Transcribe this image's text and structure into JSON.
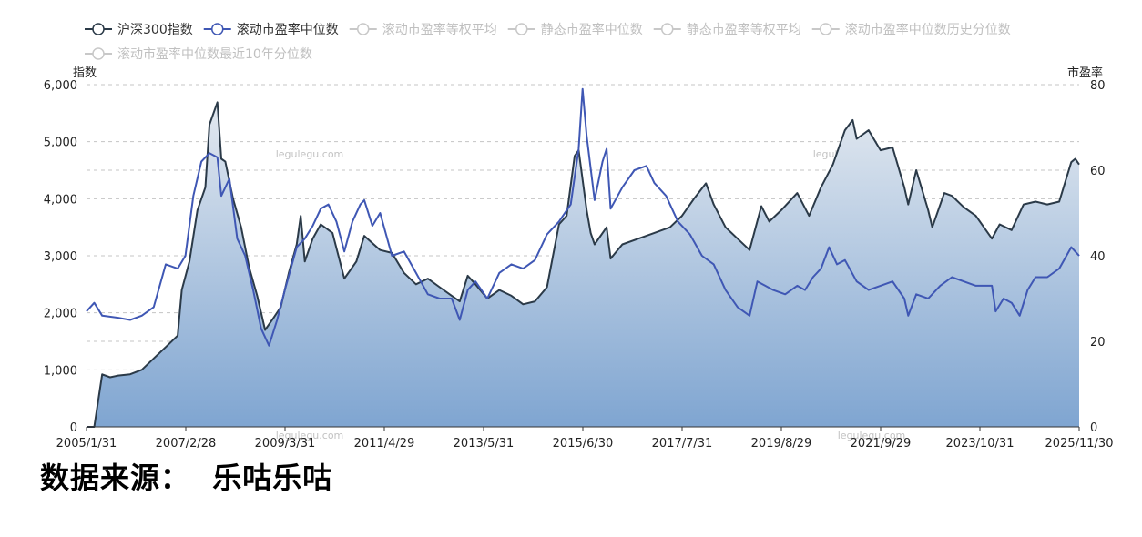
{
  "chart_data": {
    "type": "line",
    "legend": {
      "placement": "top-left",
      "items": [
        {
          "label": "沪深300指数",
          "active": true,
          "color": "#2b3a48"
        },
        {
          "label": "滚动市盈率中位数",
          "active": true,
          "color": "#3f57b4"
        },
        {
          "label": "滚动市盈率等权平均",
          "active": false
        },
        {
          "label": "静态市盈率中位数",
          "active": false
        },
        {
          "label": "静态市盈率等权平均",
          "active": false
        },
        {
          "label": "滚动市盈率中位数历史分位数",
          "active": false
        },
        {
          "label": "滚动市盈率中位数最近10年分位数",
          "active": false
        }
      ]
    },
    "y_left": {
      "label": "指数",
      "min": 0,
      "max": 6000,
      "ticks": [
        0,
        1000,
        2000,
        3000,
        4000,
        5000,
        6000
      ],
      "tick_labels": [
        "0",
        "1,000",
        "2,000",
        "3,000",
        "4,000",
        "5,000",
        "6,000"
      ]
    },
    "y_right": {
      "label": "市盈率",
      "min": 0,
      "max": 80,
      "ticks": [
        0,
        20,
        40,
        60,
        80
      ],
      "tick_labels": [
        "0",
        "20",
        "40",
        "60",
        "80"
      ]
    },
    "x_range": [
      "2005-01-31",
      "2025-11-30"
    ],
    "x_tick_labels": [
      "2005/1/31",
      "2007/2/28",
      "2009/3/31",
      "2011/4/29",
      "2013/5/31",
      "2015/6/30",
      "2017/7/31",
      "2019/8/29",
      "2021/9/29",
      "2023/10/31",
      "2025/11/30"
    ],
    "grid": "horizontal dashed",
    "watermarks": [
      "legulegu.com",
      "legulegu.com",
      "legulegu.com",
      "legulegu.com"
    ],
    "series": [
      {
        "name": "沪深300指数",
        "axis": "left",
        "style": "area",
        "color": "#2b3a48",
        "points": [
          [
            "2005-01-31",
            0
          ],
          [
            "2005-03-31",
            0
          ],
          [
            "2005-05-31",
            920
          ],
          [
            "2005-07-31",
            870
          ],
          [
            "2005-09-30",
            900
          ],
          [
            "2005-12-31",
            923
          ],
          [
            "2006-03-31",
            1000
          ],
          [
            "2006-06-30",
            1200
          ],
          [
            "2006-09-30",
            1400
          ],
          [
            "2006-12-31",
            1600
          ],
          [
            "2007-01-31",
            2400
          ],
          [
            "2007-03-31",
            2900
          ],
          [
            "2007-05-31",
            3800
          ],
          [
            "2007-07-31",
            4200
          ],
          [
            "2007-08-31",
            5300
          ],
          [
            "2007-10-31",
            5690
          ],
          [
            "2007-11-30",
            4700
          ],
          [
            "2007-12-31",
            4650
          ],
          [
            "2008-02-28",
            4000
          ],
          [
            "2008-04-30",
            3500
          ],
          [
            "2008-06-30",
            2800
          ],
          [
            "2008-08-31",
            2300
          ],
          [
            "2008-10-31",
            1700
          ],
          [
            "2008-12-31",
            1900
          ],
          [
            "2009-02-28",
            2100
          ],
          [
            "2009-04-30",
            2700
          ],
          [
            "2009-06-30",
            3200
          ],
          [
            "2009-07-31",
            3700
          ],
          [
            "2009-08-31",
            2900
          ],
          [
            "2009-10-31",
            3300
          ],
          [
            "2009-12-31",
            3550
          ],
          [
            "2010-03-31",
            3400
          ],
          [
            "2010-06-30",
            2600
          ],
          [
            "2010-09-30",
            2900
          ],
          [
            "2010-11-30",
            3350
          ],
          [
            "2011-03-31",
            3100
          ],
          [
            "2011-06-30",
            3050
          ],
          [
            "2011-09-30",
            2700
          ],
          [
            "2011-12-31",
            2500
          ],
          [
            "2012-03-31",
            2600
          ],
          [
            "2012-06-30",
            2450
          ],
          [
            "2012-09-30",
            2300
          ],
          [
            "2012-11-30",
            2200
          ],
          [
            "2013-01-31",
            2650
          ],
          [
            "2013-03-31",
            2500
          ],
          [
            "2013-06-30",
            2250
          ],
          [
            "2013-09-30",
            2400
          ],
          [
            "2013-12-31",
            2300
          ],
          [
            "2014-03-31",
            2150
          ],
          [
            "2014-06-30",
            2200
          ],
          [
            "2014-09-30",
            2450
          ],
          [
            "2014-12-31",
            3550
          ],
          [
            "2015-02-28",
            3700
          ],
          [
            "2015-04-30",
            4750
          ],
          [
            "2015-05-31",
            4850
          ],
          [
            "2015-07-31",
            3800
          ],
          [
            "2015-08-31",
            3400
          ],
          [
            "2015-09-30",
            3200
          ],
          [
            "2015-12-31",
            3500
          ],
          [
            "2016-01-31",
            2950
          ],
          [
            "2016-04-30",
            3200
          ],
          [
            "2016-08-31",
            3300
          ],
          [
            "2016-12-31",
            3400
          ],
          [
            "2017-04-30",
            3500
          ],
          [
            "2017-07-31",
            3700
          ],
          [
            "2017-10-31",
            4000
          ],
          [
            "2018-01-31",
            4270
          ],
          [
            "2018-03-31",
            3900
          ],
          [
            "2018-06-30",
            3500
          ],
          [
            "2018-09-30",
            3300
          ],
          [
            "2018-12-31",
            3100
          ],
          [
            "2019-03-31",
            3870
          ],
          [
            "2019-05-31",
            3600
          ],
          [
            "2019-08-31",
            3800
          ],
          [
            "2019-12-31",
            4100
          ],
          [
            "2020-03-31",
            3700
          ],
          [
            "2020-06-30",
            4200
          ],
          [
            "2020-09-30",
            4600
          ],
          [
            "2020-12-31",
            5200
          ],
          [
            "2021-02-28",
            5380
          ],
          [
            "2021-03-31",
            5050
          ],
          [
            "2021-06-30",
            5200
          ],
          [
            "2021-09-30",
            4850
          ],
          [
            "2021-12-31",
            4900
          ],
          [
            "2022-03-31",
            4200
          ],
          [
            "2022-04-30",
            3900
          ],
          [
            "2022-06-30",
            4500
          ],
          [
            "2022-09-30",
            3800
          ],
          [
            "2022-10-31",
            3500
          ],
          [
            "2023-01-31",
            4100
          ],
          [
            "2023-03-31",
            4050
          ],
          [
            "2023-06-30",
            3850
          ],
          [
            "2023-09-30",
            3700
          ],
          [
            "2024-01-31",
            3300
          ],
          [
            "2024-03-31",
            3550
          ],
          [
            "2024-06-30",
            3450
          ],
          [
            "2024-09-30",
            3900
          ],
          [
            "2024-12-31",
            3950
          ],
          [
            "2025-03-31",
            3900
          ],
          [
            "2025-06-30",
            3950
          ],
          [
            "2025-09-30",
            4640
          ],
          [
            "2025-10-31",
            4700
          ],
          [
            "2025-11-30",
            4600
          ]
        ]
      },
      {
        "name": "滚动市盈率中位数",
        "axis": "right",
        "style": "line",
        "color": "#3f57b4",
        "points": [
          [
            "2005-01-31",
            27
          ],
          [
            "2005-03-31",
            29
          ],
          [
            "2005-05-31",
            26
          ],
          [
            "2005-09-30",
            25.5
          ],
          [
            "2005-12-31",
            25
          ],
          [
            "2006-03-31",
            26
          ],
          [
            "2006-06-30",
            28
          ],
          [
            "2006-09-30",
            38
          ],
          [
            "2006-12-31",
            37
          ],
          [
            "2007-02-28",
            40
          ],
          [
            "2007-04-30",
            54
          ],
          [
            "2007-06-30",
            62
          ],
          [
            "2007-08-31",
            64
          ],
          [
            "2007-10-31",
            63
          ],
          [
            "2007-11-30",
            54
          ],
          [
            "2008-01-31",
            58
          ],
          [
            "2008-03-31",
            44
          ],
          [
            "2008-05-31",
            40
          ],
          [
            "2008-07-31",
            32
          ],
          [
            "2008-09-30",
            23
          ],
          [
            "2008-11-30",
            19
          ],
          [
            "2009-01-31",
            25
          ],
          [
            "2009-03-31",
            32
          ],
          [
            "2009-06-30",
            42
          ],
          [
            "2009-08-31",
            44
          ],
          [
            "2009-10-31",
            47
          ],
          [
            "2009-12-31",
            51
          ],
          [
            "2010-02-28",
            52
          ],
          [
            "2010-04-30",
            48
          ],
          [
            "2010-06-30",
            41
          ],
          [
            "2010-08-31",
            48
          ],
          [
            "2010-10-31",
            52
          ],
          [
            "2010-11-30",
            53
          ],
          [
            "2011-01-31",
            47
          ],
          [
            "2011-03-31",
            50
          ],
          [
            "2011-06-30",
            40
          ],
          [
            "2011-09-30",
            41
          ],
          [
            "2011-12-31",
            36
          ],
          [
            "2012-03-31",
            31
          ],
          [
            "2012-06-30",
            30
          ],
          [
            "2012-09-30",
            30
          ],
          [
            "2012-11-30",
            25
          ],
          [
            "2013-01-31",
            32
          ],
          [
            "2013-03-31",
            34
          ],
          [
            "2013-06-30",
            30
          ],
          [
            "2013-09-30",
            36
          ],
          [
            "2013-12-31",
            38
          ],
          [
            "2014-03-31",
            37
          ],
          [
            "2014-06-30",
            39
          ],
          [
            "2014-09-30",
            45
          ],
          [
            "2014-12-31",
            48
          ],
          [
            "2015-03-31",
            52
          ],
          [
            "2015-05-31",
            65
          ],
          [
            "2015-06-30",
            79
          ],
          [
            "2015-07-31",
            68
          ],
          [
            "2015-09-30",
            53
          ],
          [
            "2015-11-30",
            62
          ],
          [
            "2015-12-31",
            65
          ],
          [
            "2016-01-31",
            51
          ],
          [
            "2016-04-30",
            56
          ],
          [
            "2016-07-31",
            60
          ],
          [
            "2016-10-31",
            61
          ],
          [
            "2016-12-31",
            57
          ],
          [
            "2017-03-31",
            54
          ],
          [
            "2017-06-30",
            48
          ],
          [
            "2017-09-30",
            45
          ],
          [
            "2017-12-31",
            40
          ],
          [
            "2018-03-31",
            38
          ],
          [
            "2018-06-30",
            32
          ],
          [
            "2018-09-30",
            28
          ],
          [
            "2018-12-31",
            26
          ],
          [
            "2019-02-28",
            34
          ],
          [
            "2019-04-30",
            33
          ],
          [
            "2019-06-30",
            32
          ],
          [
            "2019-09-30",
            31
          ],
          [
            "2019-12-31",
            33
          ],
          [
            "2020-02-29",
            32
          ],
          [
            "2020-04-30",
            35
          ],
          [
            "2020-06-30",
            37
          ],
          [
            "2020-08-31",
            42
          ],
          [
            "2020-10-31",
            38
          ],
          [
            "2020-12-31",
            39
          ],
          [
            "2021-03-31",
            34
          ],
          [
            "2021-06-30",
            32
          ],
          [
            "2021-09-30",
            33
          ],
          [
            "2021-12-31",
            34
          ],
          [
            "2022-03-31",
            30
          ],
          [
            "2022-04-30",
            26
          ],
          [
            "2022-06-30",
            31
          ],
          [
            "2022-09-30",
            30
          ],
          [
            "2022-12-31",
            33
          ],
          [
            "2023-03-31",
            35
          ],
          [
            "2023-06-30",
            34
          ],
          [
            "2023-09-30",
            33
          ],
          [
            "2024-01-31",
            33
          ],
          [
            "2024-02-29",
            27
          ],
          [
            "2024-04-30",
            30
          ],
          [
            "2024-06-30",
            29
          ],
          [
            "2024-08-31",
            26
          ],
          [
            "2024-10-31",
            32
          ],
          [
            "2024-12-31",
            35
          ],
          [
            "2025-03-31",
            35
          ],
          [
            "2025-06-30",
            37
          ],
          [
            "2025-09-30",
            42
          ],
          [
            "2025-10-31",
            41
          ],
          [
            "2025-11-30",
            40
          ]
        ]
      }
    ]
  },
  "source_label": "数据来源：",
  "source_name": "乐咕乐咕"
}
